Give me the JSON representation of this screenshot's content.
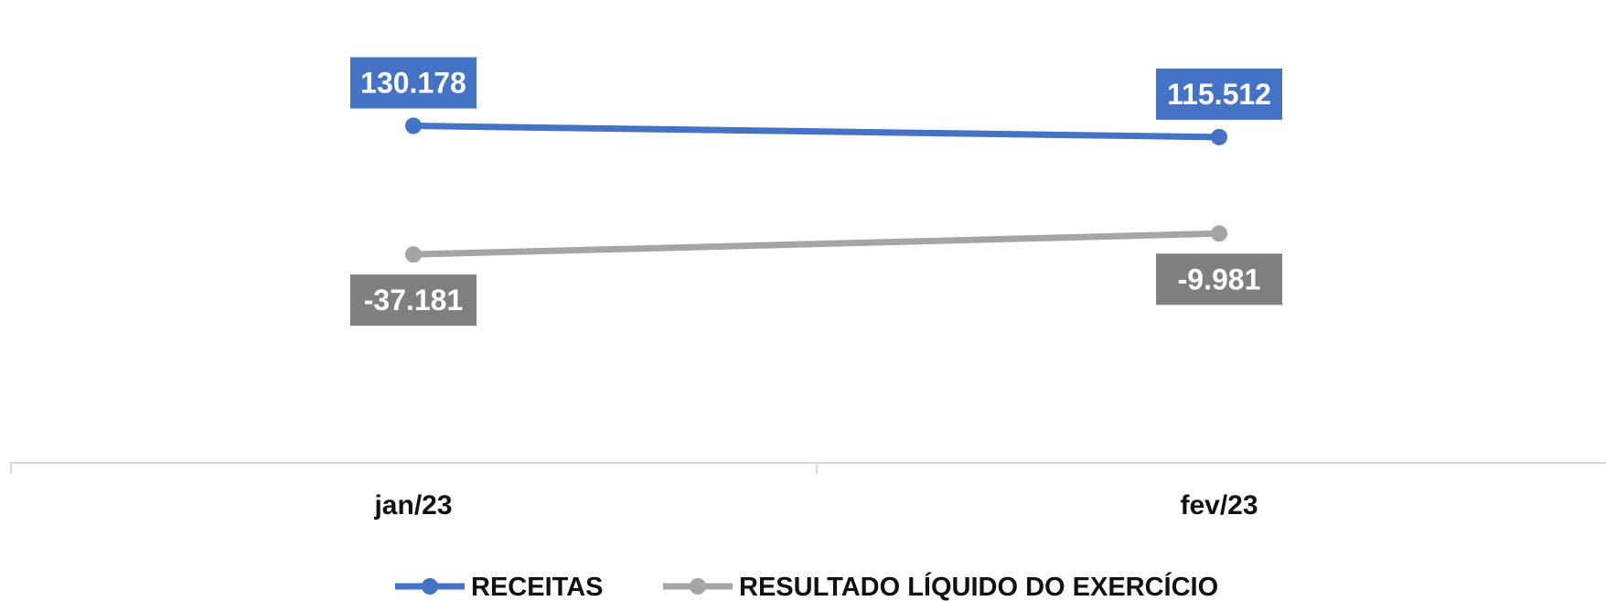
{
  "chart_data": {
    "type": "line",
    "x": [
      "jan/23",
      "fev/23"
    ],
    "series": [
      {
        "name": "RECEITAS",
        "values": [
          130178,
          115512
        ],
        "labels": [
          "130.178",
          "115.512"
        ],
        "color": "#4472C4",
        "label_bg": "#4472C4"
      },
      {
        "name": "RESULTADO LÍQUIDO DO EXERCÍCIO",
        "values": [
          -37181,
          -9981
        ],
        "labels": [
          "-37.181",
          "-9.981"
        ],
        "color": "#A5A5A5",
        "label_bg": "#7F7F7F"
      }
    ],
    "legend": "bottom",
    "grid": false,
    "axis_color": "#D9D9D9"
  }
}
